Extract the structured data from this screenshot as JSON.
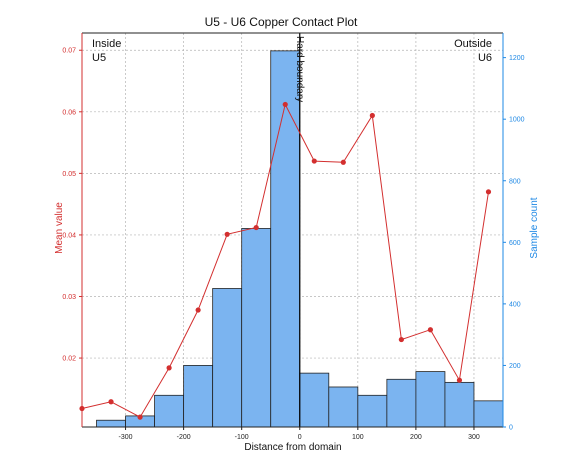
{
  "colors": {
    "line": "#d32f2f",
    "bar_fill": "#7bb4f0",
    "bar_stroke": "#222222",
    "right_axis": "#1e88e5",
    "left_axis": "#d32f2f",
    "boundary": "#000000",
    "grid": "#b5b5b5"
  },
  "chart_data": {
    "type": "bar+line",
    "title": "U5 - U6 Copper Contact Plot",
    "xlabel": "Distance from domain",
    "ylabel_left": "Mean value",
    "ylabel_right": "Sample count",
    "xlim": [
      -375,
      350
    ],
    "ylim_left": [
      0.0088,
      0.0728
    ],
    "ylim_right": [
      0,
      1280
    ],
    "x_ticks": [
      -300,
      -200,
      -100,
      0,
      100,
      200,
      300
    ],
    "x_tick_labels": [
      "-300",
      "-200",
      "-100",
      "0",
      "100",
      "200",
      "300"
    ],
    "y_left_ticks": [
      0.02,
      0.03,
      0.04,
      0.05,
      0.06,
      0.07
    ],
    "y_left_tick_labels": [
      "0.02",
      "0.03",
      "0.04",
      "0.05",
      "0.06",
      "0.07"
    ],
    "y_right_ticks": [
      0,
      200,
      400,
      600,
      800,
      1000,
      1200
    ],
    "y_right_tick_labels": [
      "0",
      "200",
      "400",
      "600",
      "800",
      "1000",
      "1200"
    ],
    "grid": true,
    "histogram": {
      "name": "Sample count",
      "bin_edges": [
        -350,
        -300,
        -250,
        -200,
        -150,
        -100,
        -50,
        0,
        50,
        100,
        150,
        200,
        250,
        300,
        350
      ],
      "counts": [
        22,
        36,
        103,
        200,
        450,
        645,
        1222,
        175,
        130,
        103,
        155,
        180,
        145,
        85
      ]
    },
    "mean_line": {
      "name": "Mean value",
      "x": [
        -375,
        -325,
        -275,
        -225,
        -175,
        -125,
        -75,
        -25,
        25,
        75,
        125,
        175,
        225,
        275,
        325
      ],
      "y": [
        0.0118,
        0.0129,
        0.0104,
        0.0184,
        0.0278,
        0.0401,
        0.0412,
        0.0612,
        0.052,
        0.0518,
        0.0594,
        0.023,
        0.0246,
        0.0164,
        0.047
      ]
    },
    "boundary": {
      "x": 0,
      "label": "Hard boundary"
    },
    "annotations": {
      "left_line1": "Inside",
      "left_line2": "U5",
      "right_line1": "Outside",
      "right_line2": "U6"
    }
  }
}
